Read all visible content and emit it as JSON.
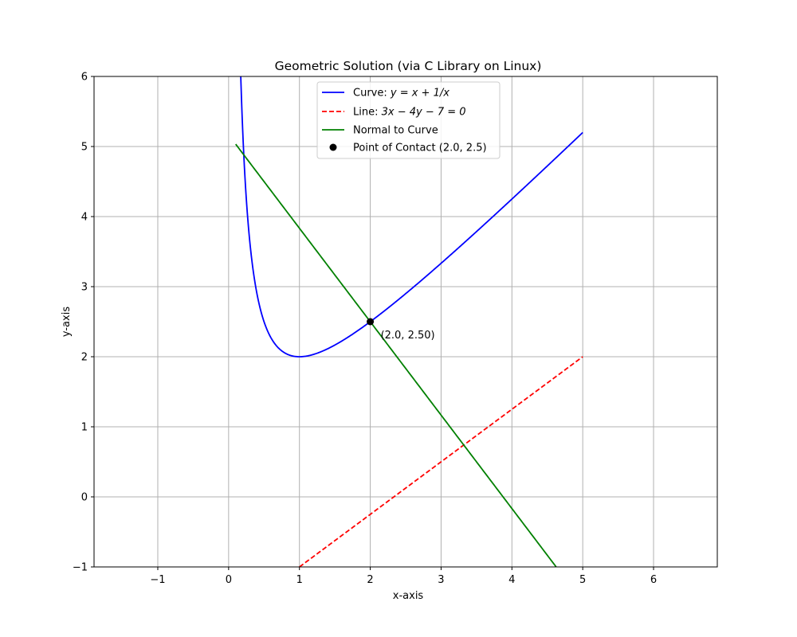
{
  "chart_data": {
    "type": "line",
    "title": "Geometric Solution (via C Library on Linux)",
    "xlabel": "x-axis",
    "ylabel": "y-axis",
    "xlim": [
      -1.9,
      6.9
    ],
    "ylim": [
      -1,
      6
    ],
    "xticks": [
      -1,
      0,
      1,
      2,
      3,
      4,
      5,
      6
    ],
    "yticks": [
      -1,
      0,
      1,
      2,
      3,
      4,
      5,
      6
    ],
    "xtick_labels": [
      "−1",
      "0",
      "1",
      "2",
      "3",
      "4",
      "5",
      "6"
    ],
    "ytick_labels": [
      "−1",
      "0",
      "1",
      "2",
      "3",
      "4",
      "5",
      "6"
    ],
    "grid": true,
    "legend_position": "top-center",
    "series": [
      {
        "name": "Curve: ",
        "math": "y = x + 1/x",
        "style": "solid",
        "color": "#0000ff",
        "function": "x + 1/x",
        "x_range": [
          0.1,
          5
        ]
      },
      {
        "name": "Line: ",
        "math": "3x − 4y − 7 = 0",
        "style": "dashed",
        "color": "#ff0000",
        "function": "(3x - 7)/4",
        "x_range": [
          1,
          5
        ]
      },
      {
        "name": "Normal to Curve",
        "math": "",
        "style": "solid",
        "color": "#008000",
        "function": "-4/3 (x - 2) + 2.5",
        "x_range": [
          0.1,
          4.625
        ]
      }
    ],
    "points": [
      {
        "name": "Point of Contact (2.0, 2.5)",
        "x": 2.0,
        "y": 2.5,
        "color": "#000000"
      }
    ],
    "annotations": [
      {
        "text": "(2.0, 2.50)",
        "x": 2.0,
        "y": 2.5
      }
    ]
  }
}
